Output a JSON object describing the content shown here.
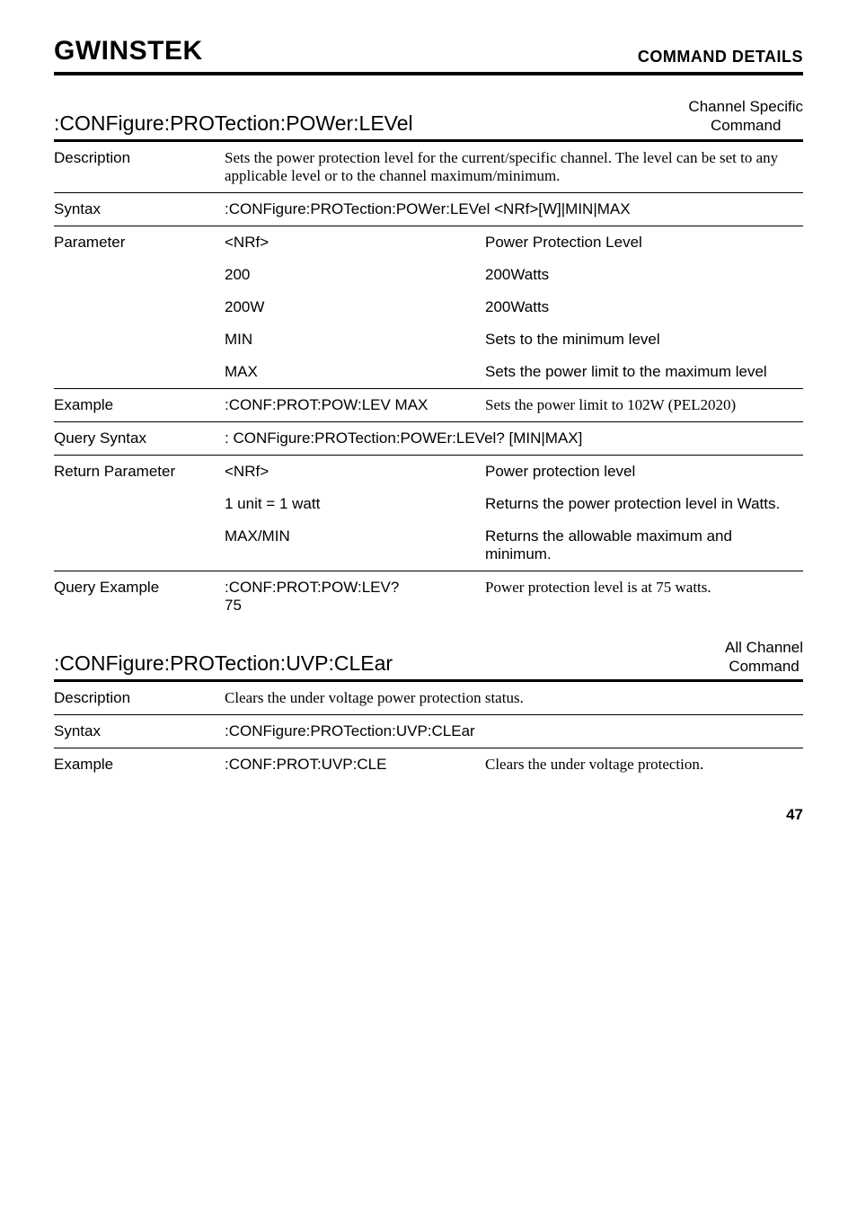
{
  "header": {
    "logo_text": "GWINSTEK",
    "title": "COMMAND DETAILS"
  },
  "cmd1": {
    "name": ":CONFigure:PROTection:POWer:LEVel",
    "badge_line1": "Channel Specific",
    "badge_line2": "Command",
    "rows": {
      "description": {
        "label": "Description",
        "text": "Sets the power protection level for the current/specific channel. The level can be set to any applicable level or to the channel maximum/minimum."
      },
      "syntax": {
        "label": "Syntax",
        "text": ":CONFigure:PROTection:POWer:LEVel <NRf>[W]|MIN|MAX"
      },
      "parameter": {
        "label": "Parameter",
        "items": [
          {
            "k": "<NRf>",
            "v": "Power Protection Level"
          },
          {
            "k": "200",
            "v": "200Watts"
          },
          {
            "k": "200W",
            "v": "200Watts"
          },
          {
            "k": "MIN",
            "v": "Sets to the minimum level"
          },
          {
            "k": "MAX",
            "v": "Sets the power limit to the maximum level"
          }
        ]
      },
      "example": {
        "label": "Example",
        "k": ":CONF:PROT:POW:LEV MAX",
        "v": "Sets the power limit to 102W (PEL2020)"
      },
      "query_syntax": {
        "label": "Query Syntax",
        "text": ": CONFigure:PROTection:POWEr:LEVel? [MIN|MAX]"
      },
      "return_parameter": {
        "label": "Return Parameter",
        "items": [
          {
            "k": "<NRf>",
            "v": "Power protection level"
          },
          {
            "k": "1 unit = 1 watt",
            "v": "Returns the power protection level in Watts."
          },
          {
            "k": "MAX/MIN",
            "v": "Returns the allowable maximum and minimum."
          }
        ]
      },
      "query_example": {
        "label": "Query Example",
        "k1": ":CONF:PROT:POW:LEV?",
        "k2": "75",
        "v": "Power protection level is at 75 watts."
      }
    }
  },
  "cmd2": {
    "name": ":CONFigure:PROTection:UVP:CLEar",
    "badge_line1": "All Channel",
    "badge_line2": "Command",
    "rows": {
      "description": {
        "label": "Description",
        "text": "Clears the under voltage power protection status."
      },
      "syntax": {
        "label": "Syntax",
        "text": ":CONFigure:PROTection:UVP:CLEar"
      },
      "example": {
        "label": "Example",
        "k": ":CONF:PROT:UVP:CLE",
        "v": "Clears the under voltage protection."
      }
    }
  },
  "page_number": "47"
}
